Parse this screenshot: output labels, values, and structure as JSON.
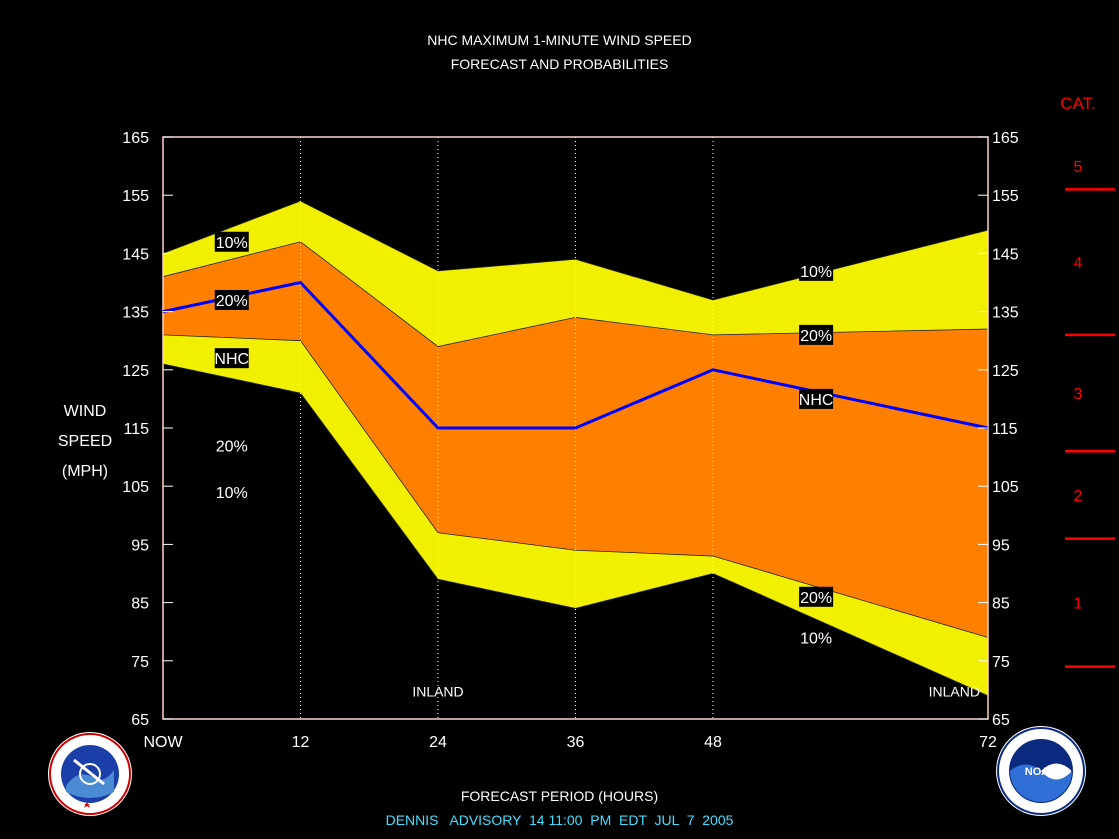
{
  "header": {
    "title_line1": "NHC MAXIMUM 1-MINUTE WIND SPEED",
    "title_line2": "FORECAST AND PROBABILITIES"
  },
  "footer": {
    "xlabel": "FORECAST PERIOD (HOURS)",
    "advisory": "DENNIS   ADVISORY  14 11:00  PM  EDT  JUL  7  2005"
  },
  "ylabel_lines": [
    "WIND",
    "SPEED",
    "(MPH)"
  ],
  "colors": {
    "background": "#000000",
    "band_10": "#f0f000",
    "band_20": "#ff8000",
    "nhc_line": "#0000ff",
    "category_markers": "#ff0000",
    "footer_advisory": "#40e0ff"
  },
  "icons": {
    "left_logo": "nws-logo",
    "right_logo": "noaa-logo"
  },
  "chart_data": {
    "type": "area",
    "x": [
      0,
      12,
      24,
      36,
      48,
      72
    ],
    "x_tick_labels": [
      "NOW",
      "12",
      "24",
      "36",
      "48",
      "72"
    ],
    "xlim": [
      0,
      72
    ],
    "ylim": [
      65,
      165
    ],
    "y_ticks": [
      65,
      75,
      85,
      95,
      105,
      115,
      125,
      135,
      145,
      155,
      165
    ],
    "grid": "vertical dotted at forecast hours",
    "series": [
      {
        "name": "10%",
        "role": "upper",
        "values": [
          145,
          154,
          142,
          144,
          137,
          149
        ]
      },
      {
        "name": "20%",
        "role": "upper",
        "values": [
          141,
          147,
          129,
          134,
          131,
          132
        ]
      },
      {
        "name": "NHC",
        "role": "forecast",
        "values": [
          135,
          140,
          115,
          115,
          125,
          115
        ]
      },
      {
        "name": "20%",
        "role": "lower",
        "values": [
          131,
          130,
          97,
          94,
          93,
          79
        ]
      },
      {
        "name": "10%",
        "role": "lower",
        "values": [
          126,
          121,
          89,
          84,
          90,
          69
        ]
      }
    ],
    "series_labels_left": [
      {
        "text": "10%",
        "x": 6,
        "y": 147
      },
      {
        "text": "20%",
        "x": 6,
        "y": 137
      },
      {
        "text": "NHC",
        "x": 6,
        "y": 127
      },
      {
        "text": "20%",
        "x": 6,
        "y": 112
      },
      {
        "text": "10%",
        "x": 6,
        "y": 104
      }
    ],
    "series_labels_right": [
      {
        "text": "10%",
        "x": 57,
        "y": 142
      },
      {
        "text": "20%",
        "x": 57,
        "y": 131
      },
      {
        "text": "NHC",
        "x": 57,
        "y": 120
      },
      {
        "text": "20%",
        "x": 57,
        "y": 86
      },
      {
        "text": "10%",
        "x": 57,
        "y": 79
      }
    ],
    "annotations": [
      {
        "text": "INLAND",
        "x": 24,
        "y": 67
      },
      {
        "text": "INLAND",
        "x": 72,
        "y": 67
      }
    ],
    "category_scale": {
      "title": "CAT.",
      "boundaries": [
        74,
        96,
        111,
        131,
        156
      ],
      "labels": [
        {
          "text": "1",
          "y": 85
        },
        {
          "text": "2",
          "y": 103.5
        },
        {
          "text": "3",
          "y": 121
        },
        {
          "text": "4",
          "y": 143.5
        },
        {
          "text": "5",
          "y": 160
        }
      ]
    }
  }
}
